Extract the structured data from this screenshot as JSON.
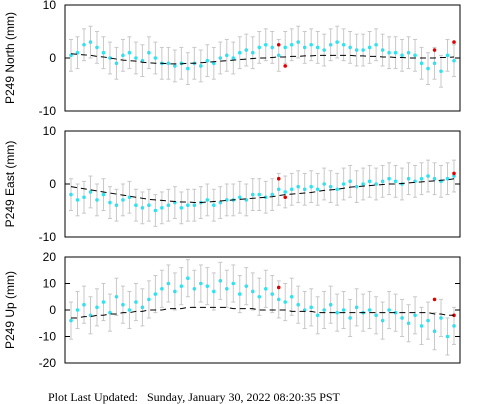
{
  "chart_data": [
    {
      "type": "scatter",
      "ylabel": "P249 North (mm)",
      "ylim": [
        -10,
        10
      ],
      "yticks": [
        -10,
        0,
        10
      ],
      "series": [
        {
          "color": "#33e0f0",
          "error": 3,
          "values": [
            0.5,
            1,
            2.5,
            3,
            2,
            1,
            0,
            -1,
            0.5,
            1,
            0,
            -0.5,
            1,
            0,
            -1,
            -1,
            -1.5,
            -1,
            -2,
            -1,
            -1.5,
            -0.5,
            -1,
            0,
            0.5,
            0,
            1,
            1.5,
            1,
            2,
            2.5,
            2,
            0.5,
            2,
            2.5,
            3,
            2,
            2.5,
            2,
            1.5,
            2.5,
            3,
            2.5,
            2,
            1.5,
            1.5,
            2,
            2.5,
            1.5,
            1,
            1,
            0.5,
            1,
            0.5,
            -1,
            -2,
            -1,
            -2.5,
            0.5,
            -0.5
          ]
        },
        {
          "color": "#e00000",
          "x": [
            32,
            33,
            56,
            59
          ],
          "values": [
            2.5,
            -1.5,
            1.5,
            3
          ]
        },
        {
          "color": "#000000",
          "style": "dashed",
          "values": [
            0.8,
            0.7,
            0.6,
            0.5,
            0.3,
            0.2,
            0,
            -0.2,
            -0.4,
            -0.5,
            -0.6,
            -0.8,
            -0.9,
            -1,
            -1,
            -1.1,
            -1.1,
            -1.1,
            -1,
            -1,
            -0.9,
            -0.8,
            -0.7,
            -0.6,
            -0.5,
            -0.4,
            -0.3,
            -0.2,
            -0.1,
            0,
            0,
            0.1,
            0.2,
            0.2,
            0.3,
            0.3,
            0.4,
            0.4,
            0.5,
            0.5,
            0.5,
            0.5,
            0.5,
            0.5,
            0.4,
            0.4,
            0.3,
            0.3,
            0.2,
            0.2,
            0.1,
            0.1,
            0,
            0,
            0,
            0,
            0,
            0.1,
            0.1,
            0.2
          ]
        }
      ]
    },
    {
      "type": "scatter",
      "ylabel": "P249 East (mm)",
      "ylim": [
        -10,
        10
      ],
      "yticks": [
        -10,
        0,
        10
      ],
      "series": [
        {
          "color": "#33e0f0",
          "error": 3,
          "values": [
            -2,
            -3,
            -2.5,
            -1.5,
            -3,
            -2,
            -3.5,
            -4,
            -3,
            -2.5,
            -4,
            -4.5,
            -4,
            -5,
            -4.5,
            -4,
            -3.5,
            -4.5,
            -4,
            -4,
            -3.5,
            -3,
            -4,
            -3.5,
            -3,
            -3,
            -2.5,
            -3,
            -2,
            -2,
            -2.5,
            -2,
            -1,
            -1.5,
            -1,
            -0.5,
            -1,
            -0.5,
            -1,
            0,
            -0.5,
            -1,
            0,
            0.5,
            -0.5,
            0,
            0.5,
            0,
            0.5,
            1,
            0.5,
            0,
            1,
            0.5,
            1,
            1.5,
            1,
            0.5,
            1,
            1.5
          ]
        },
        {
          "color": "#e00000",
          "x": [
            32,
            33,
            59
          ],
          "values": [
            1,
            -2.5,
            2
          ]
        },
        {
          "color": "#000000",
          "style": "dashed",
          "values": [
            -0.5,
            -0.7,
            -0.9,
            -1.1,
            -1.3,
            -1.5,
            -1.7,
            -1.9,
            -2.1,
            -2.3,
            -2.5,
            -2.7,
            -2.9,
            -3,
            -3.1,
            -3.2,
            -3.3,
            -3.4,
            -3.4,
            -3.5,
            -3.5,
            -3.4,
            -3.3,
            -3.2,
            -3.1,
            -3,
            -2.9,
            -2.8,
            -2.7,
            -2.6,
            -2.5,
            -2.4,
            -2.2,
            -2,
            -1.9,
            -1.8,
            -1.7,
            -1.6,
            -1.4,
            -1.2,
            -1.1,
            -1,
            -0.8,
            -0.6,
            -0.5,
            -0.4,
            -0.3,
            -0.2,
            -0.1,
            0,
            0,
            0.1,
            0.2,
            0.3,
            0.4,
            0.5,
            0.6,
            0.7,
            0.8,
            1
          ]
        }
      ]
    },
    {
      "type": "scatter",
      "ylabel": "P249 Up (mm)",
      "ylim": [
        -20,
        20
      ],
      "yticks": [
        -20,
        -10,
        0,
        10,
        20
      ],
      "series": [
        {
          "color": "#33e0f0",
          "error": 7,
          "values": [
            -4,
            0,
            2,
            -2,
            1,
            3,
            -1,
            5,
            2,
            0,
            3,
            1,
            4,
            6,
            8,
            10,
            7,
            9,
            12,
            8,
            10,
            9,
            7,
            11,
            8,
            10,
            6,
            9,
            7,
            5,
            8,
            6,
            4,
            3,
            5,
            2,
            0,
            1,
            -2,
            0,
            2,
            -1,
            0,
            -3,
            1,
            -1,
            0,
            -2,
            -4,
            0,
            -1,
            -3,
            -5,
            -2,
            -6,
            -4,
            -8,
            -3,
            -10,
            -6
          ]
        },
        {
          "color": "#e00000",
          "x": [
            32,
            56,
            59
          ],
          "values": [
            8.5,
            4,
            -2
          ]
        },
        {
          "color": "#000000",
          "style": "dashed",
          "values": [
            -3,
            -3,
            -2.5,
            -2.5,
            -2,
            -2,
            -1.5,
            -1.5,
            -1,
            -1,
            -0.5,
            -0.5,
            0,
            0,
            0,
            0.5,
            0.5,
            0.5,
            1,
            1,
            1,
            1,
            1,
            1,
            1,
            0.5,
            0.5,
            0.5,
            0.5,
            0,
            0,
            0,
            0,
            0,
            -0.5,
            -0.5,
            -0.5,
            -0.5,
            -1,
            -1,
            -1,
            -1,
            -1,
            -1,
            -1,
            -1,
            -1,
            -1,
            -1,
            -1,
            -1,
            -1,
            -1,
            -1,
            -1,
            -1,
            -1.5,
            -1.5,
            -2,
            -2
          ]
        }
      ]
    }
  ],
  "footer": "Plot Last Updated:   Sunday, January 30, 2022 08:20:35 PST"
}
